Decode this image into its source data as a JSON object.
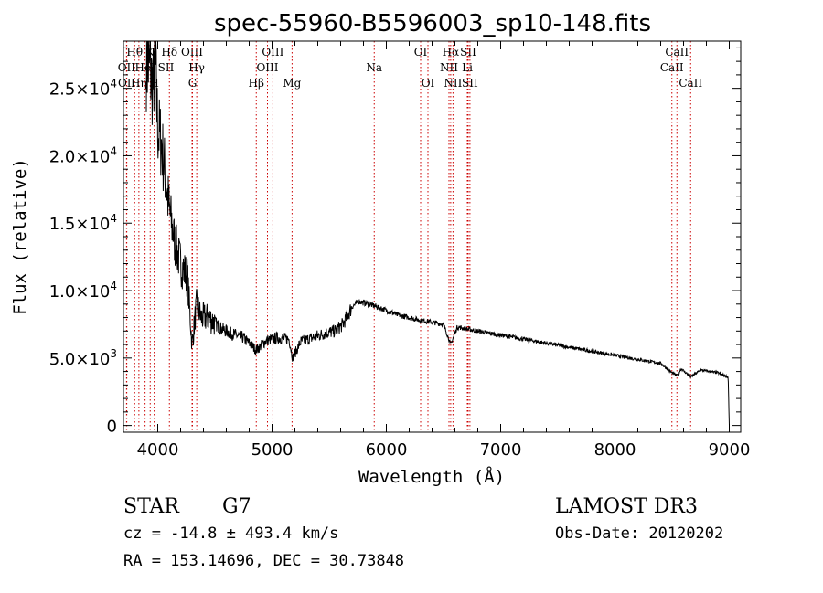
{
  "chart_data": {
    "type": "line",
    "title": "spec-55960-B5596003_sp10-148.fits",
    "xlabel": "Wavelength (Å)",
    "ylabel": "Flux (relative)",
    "xlim": [
      3700,
      9100
    ],
    "ylim": [
      -500,
      28500
    ],
    "x_ticks": [
      4000,
      5000,
      6000,
      7000,
      8000,
      9000
    ],
    "x_tick_labels": [
      "4000",
      "5000",
      "6000",
      "7000",
      "8000",
      "9000"
    ],
    "y_ticks": [
      0,
      5000,
      10000,
      15000,
      20000,
      25000
    ],
    "y_tick_labels": [
      {
        "mant": "0",
        "exp": ""
      },
      {
        "mant": "5.0×10",
        "exp": "3"
      },
      {
        "mant": "1.0×10",
        "exp": "4"
      },
      {
        "mant": "1.5×10",
        "exp": "4"
      },
      {
        "mant": "2.0×10",
        "exp": "4"
      },
      {
        "mant": "2.5×10",
        "exp": "4"
      }
    ],
    "series": [
      {
        "name": "spectrum",
        "x": [
          3900,
          3930,
          3960,
          3975,
          4000,
          4030,
          4060,
          4100,
          4150,
          4200,
          4260,
          4300,
          4340,
          4380,
          4450,
          4550,
          4650,
          4750,
          4862,
          4950,
          5050,
          5150,
          5180,
          5250,
          5350,
          5450,
          5550,
          5620,
          5700,
          5760,
          5850,
          5950,
          6100,
          6300,
          6500,
          6563,
          6620,
          6800,
          7000,
          7200,
          7400,
          7600,
          7800,
          8000,
          8200,
          8400,
          8498,
          8542,
          8580,
          8662,
          8750,
          8900,
          8990,
          9000
        ],
        "y": [
          27000,
          26500,
          25000,
          27500,
          22000,
          21000,
          19000,
          16000,
          13500,
          12000,
          11000,
          6000,
          9000,
          8000,
          8000,
          7200,
          6800,
          6500,
          5600,
          6300,
          6500,
          6400,
          5000,
          6200,
          6500,
          6800,
          7000,
          7500,
          8800,
          9200,
          9000,
          8700,
          8200,
          7800,
          7500,
          6000,
          7300,
          7000,
          6700,
          6400,
          6100,
          5800,
          5500,
          5200,
          4900,
          4600,
          3900,
          3700,
          4200,
          3600,
          4100,
          3900,
          3600,
          0
        ]
      }
    ],
    "line_markers": [
      {
        "label": "Hθ",
        "x": 3798,
        "row": 0
      },
      {
        "label": "OII",
        "x": 3727,
        "row": 1
      },
      {
        "label": "OII",
        "x": 3729,
        "row": 2
      },
      {
        "label": "Hη",
        "x": 3835,
        "row": 2
      },
      {
        "label": "HeI",
        "x": 3889,
        "row": 1
      },
      {
        "label": "K",
        "x": 3934,
        "row": 0
      },
      {
        "label": "H",
        "x": 3969,
        "row": 2
      },
      {
        "label": "SII",
        "x": 4072,
        "row": 1
      },
      {
        "label": "Hδ",
        "x": 4102,
        "row": 0
      },
      {
        "label": "OIII",
        "x": 4300,
        "row": 0
      },
      {
        "label": "G",
        "x": 4304,
        "row": 2
      },
      {
        "label": "Hγ",
        "x": 4341,
        "row": 1
      },
      {
        "label": "Hβ",
        "x": 4862,
        "row": 2
      },
      {
        "label": "OIII",
        "x": 4960,
        "row": 1
      },
      {
        "label": "OIII",
        "x": 5007,
        "row": 0
      },
      {
        "label": "Mg",
        "x": 5175,
        "row": 2
      },
      {
        "label": "Na",
        "x": 5894,
        "row": 1
      },
      {
        "label": "OI",
        "x": 6300,
        "row": 0
      },
      {
        "label": "OI",
        "x": 6364,
        "row": 2
      },
      {
        "label": "NII",
        "x": 6548,
        "row": 1
      },
      {
        "label": "Hα",
        "x": 6563,
        "row": 0
      },
      {
        "label": "NII",
        "x": 6583,
        "row": 2
      },
      {
        "label": "SII",
        "x": 6716,
        "row": 0
      },
      {
        "label": "Li",
        "x": 6708,
        "row": 1
      },
      {
        "label": "SII",
        "x": 6731,
        "row": 2
      },
      {
        "label": "CaII",
        "x": 8498,
        "row": 1
      },
      {
        "label": "CaII",
        "x": 8542,
        "row": 0
      },
      {
        "label": "CaII",
        "x": 8662,
        "row": 2
      }
    ],
    "marker_color": "#cc0000"
  },
  "info": {
    "object_class": "STAR",
    "subclass": "G7",
    "survey": "LAMOST DR3",
    "cz": "cz = -14.8 ± 493.4 km/s",
    "obs_date": "Obs-Date: 20120202",
    "coords": "RA = 153.14696, DEC =  30.73848"
  }
}
